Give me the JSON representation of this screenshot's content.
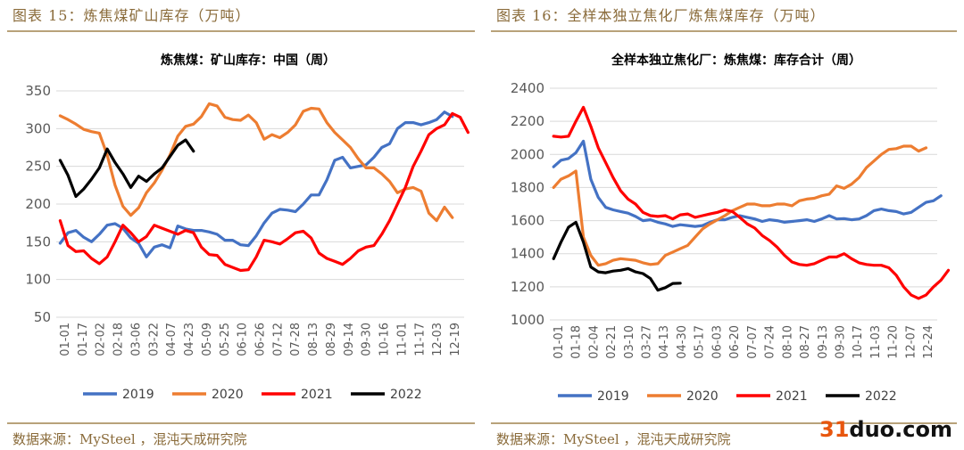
{
  "figures": {
    "left_title": "图表 15：炼焦煤矿山库存（万吨）",
    "right_title": "图表 16：全样本独立焦化厂炼焦煤库存（万吨）",
    "left_source": "数据来源：MySteel ，混沌天成研究院",
    "right_source": "数据来源：MySteel ，混沌天成研究院"
  },
  "watermark": {
    "num": "31",
    "rest": "duo.com"
  },
  "colors": {
    "2019": "#4472c4",
    "2020": "#ed7d31",
    "2021": "#ff0000",
    "2022": "#000000",
    "grid": "#d9d9d9"
  },
  "chart_data": [
    {
      "type": "line",
      "title": "炼焦煤：矿山库存：中国（周）",
      "x_labels": [
        "01-01",
        "01-17",
        "02-02",
        "02-18",
        "03-06",
        "03-22",
        "04-07",
        "04-23",
        "05-09",
        "05-25",
        "06-10",
        "06-26",
        "07-12",
        "07-28",
        "08-13",
        "08-29",
        "09-14",
        "09-30",
        "10-16",
        "11-01",
        "11-17",
        "12-03",
        "12-19"
      ],
      "ylim": [
        50,
        350
      ],
      "yticks": [
        50,
        100,
        150,
        200,
        250,
        300,
        350
      ],
      "legend": [
        "2019",
        "2020",
        "2021",
        "2022"
      ],
      "series": [
        {
          "name": "2019",
          "color": "#4472c4",
          "values": [
            148,
            162,
            165,
            156,
            150,
            160,
            172,
            174,
            168,
            155,
            148,
            130,
            143,
            146,
            142,
            171,
            167,
            165,
            165,
            163,
            160,
            152,
            152,
            146,
            145,
            158,
            175,
            188,
            193,
            192,
            190,
            200,
            212,
            212,
            232,
            258,
            262,
            248,
            250,
            252,
            262,
            275,
            280,
            300,
            308,
            308,
            305,
            308,
            312,
            322,
            316
          ]
        },
        {
          "name": "2020",
          "color": "#ed7d31",
          "values": [
            317,
            312,
            306,
            299,
            296,
            294,
            265,
            225,
            197,
            185,
            195,
            215,
            228,
            245,
            265,
            290,
            303,
            306,
            316,
            333,
            330,
            315,
            312,
            311,
            318,
            308,
            286,
            292,
            288,
            295,
            305,
            323,
            327,
            326,
            308,
            295,
            285,
            275,
            260,
            248,
            248,
            240,
            230,
            215,
            220,
            222,
            217,
            188,
            178,
            196,
            182
          ]
        },
        {
          "name": "2021",
          "color": "#ff0000",
          "values": [
            178,
            145,
            137,
            138,
            128,
            121,
            130,
            150,
            172,
            162,
            150,
            157,
            172,
            168,
            164,
            160,
            165,
            162,
            143,
            133,
            132,
            120,
            116,
            112,
            113,
            130,
            152,
            150,
            147,
            154,
            162,
            164,
            155,
            135,
            128,
            124,
            120,
            128,
            138,
            143,
            145,
            160,
            178,
            200,
            222,
            250,
            270,
            292,
            300,
            305,
            320,
            315,
            295
          ]
        },
        {
          "name": "2022",
          "color": "#000000",
          "values": [
            258,
            238,
            210,
            220,
            233,
            248,
            273,
            255,
            240,
            222,
            237,
            230,
            240,
            248,
            263,
            278,
            285,
            270
          ]
        }
      ]
    },
    {
      "type": "line",
      "title": "全样本独立焦化厂：炼焦煤：库存合计（周）",
      "x_labels": [
        "01-01",
        "01-18",
        "02-04",
        "02-21",
        "03-10",
        "03-27",
        "04-13",
        "04-30",
        "05-17",
        "06-03",
        "06-20",
        "07-07",
        "07-24",
        "08-10",
        "08-27",
        "09-13",
        "09-30",
        "10-17",
        "11-03",
        "11-20",
        "12-07",
        "12-24"
      ],
      "ylim": [
        1000,
        2400
      ],
      "yticks": [
        1000,
        1200,
        1400,
        1600,
        1800,
        2000,
        2200,
        2400
      ],
      "legend": [
        "2019",
        "2020",
        "2021",
        "2022"
      ],
      "series": [
        {
          "name": "2019",
          "color": "#4472c4",
          "values": [
            1925,
            1965,
            1975,
            2010,
            2080,
            1850,
            1740,
            1680,
            1665,
            1655,
            1645,
            1625,
            1600,
            1605,
            1590,
            1580,
            1565,
            1575,
            1570,
            1565,
            1570,
            1590,
            1605,
            1605,
            1620,
            1630,
            1620,
            1610,
            1595,
            1605,
            1600,
            1590,
            1595,
            1600,
            1605,
            1595,
            1610,
            1630,
            1610,
            1612,
            1605,
            1610,
            1630,
            1660,
            1670,
            1660,
            1655,
            1640,
            1650,
            1680,
            1710,
            1720,
            1750
          ]
        },
        {
          "name": "2020",
          "color": "#ed7d31",
          "values": [
            1800,
            1850,
            1870,
            1900,
            1500,
            1390,
            1330,
            1340,
            1360,
            1370,
            1365,
            1360,
            1345,
            1335,
            1340,
            1390,
            1410,
            1430,
            1450,
            1500,
            1550,
            1580,
            1605,
            1630,
            1660,
            1680,
            1700,
            1700,
            1690,
            1690,
            1700,
            1700,
            1690,
            1720,
            1730,
            1735,
            1750,
            1760,
            1810,
            1795,
            1820,
            1860,
            1920,
            1960,
            2000,
            2030,
            2035,
            2050,
            2050,
            2020,
            2040
          ]
        },
        {
          "name": "2021",
          "color": "#ff0000",
          "values": [
            2110,
            2105,
            2110,
            2200,
            2285,
            2170,
            2040,
            1950,
            1860,
            1780,
            1730,
            1700,
            1650,
            1630,
            1625,
            1630,
            1610,
            1635,
            1640,
            1620,
            1630,
            1640,
            1650,
            1665,
            1655,
            1620,
            1580,
            1555,
            1510,
            1480,
            1440,
            1390,
            1350,
            1335,
            1330,
            1340,
            1360,
            1380,
            1380,
            1400,
            1370,
            1345,
            1335,
            1330,
            1330,
            1315,
            1270,
            1200,
            1150,
            1130,
            1150,
            1200,
            1240,
            1300
          ]
        },
        {
          "name": "2022",
          "color": "#000000",
          "values": [
            1370,
            1470,
            1560,
            1590,
            1470,
            1320,
            1290,
            1285,
            1295,
            1300,
            1310,
            1290,
            1280,
            1250,
            1180,
            1195,
            1220,
            1222
          ]
        }
      ]
    }
  ]
}
